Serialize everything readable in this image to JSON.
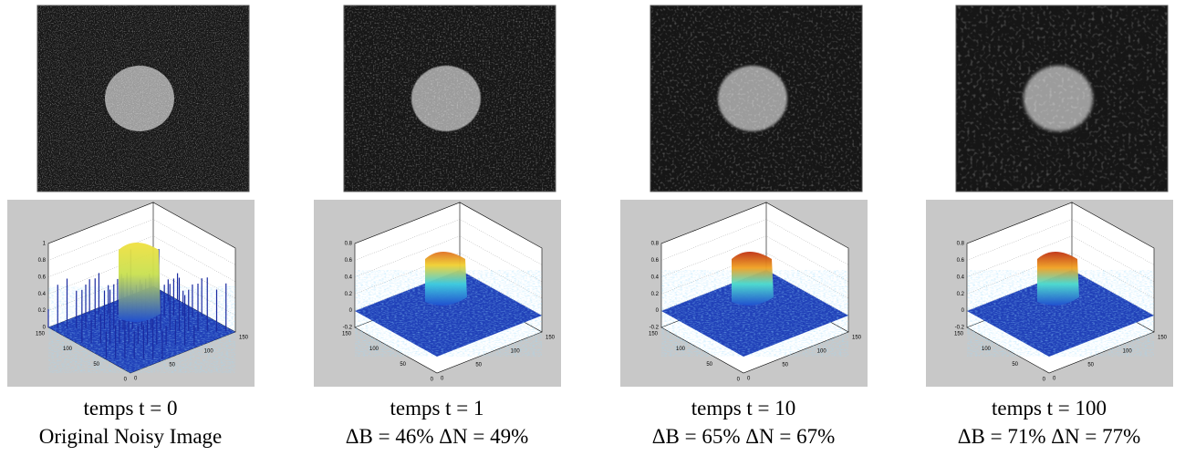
{
  "panels": [
    {
      "caption": "temps t = 0",
      "subcaption": "Original Noisy Image",
      "zticks": [
        "1",
        "0.8",
        "0.6",
        "0.4",
        "0.2",
        "0"
      ],
      "yticks": [
        "150",
        "100",
        "50",
        "0"
      ],
      "xticks": [
        "0",
        "50",
        "100",
        "150"
      ]
    },
    {
      "caption": "temps t = 1",
      "subcaption": "ΔB = 46% ΔN = 49%",
      "zticks": [
        "0.8",
        "0.6",
        "0.4",
        "0.2",
        "0",
        "-0.2"
      ],
      "yticks": [
        "150",
        "100",
        "50",
        "0"
      ],
      "xticks": [
        "0",
        "50",
        "100",
        "150"
      ]
    },
    {
      "caption": "temps t = 10",
      "subcaption": "ΔB = 65% ΔN = 67%",
      "zticks": [
        "0.8",
        "0.6",
        "0.4",
        "0.2",
        "0",
        "-0.2"
      ],
      "yticks": [
        "150",
        "100",
        "50",
        "0"
      ],
      "xticks": [
        "0",
        "50",
        "100",
        "150"
      ]
    },
    {
      "caption": "temps t = 100",
      "subcaption": "ΔB = 71% ΔN = 77%",
      "zticks": [
        "0.8",
        "0.6",
        "0.4",
        "0.2",
        "0",
        "-0.2"
      ],
      "yticks": [
        "150",
        "100",
        "50",
        "0"
      ],
      "xticks": [
        "0",
        "50",
        "100",
        "150"
      ]
    }
  ]
}
